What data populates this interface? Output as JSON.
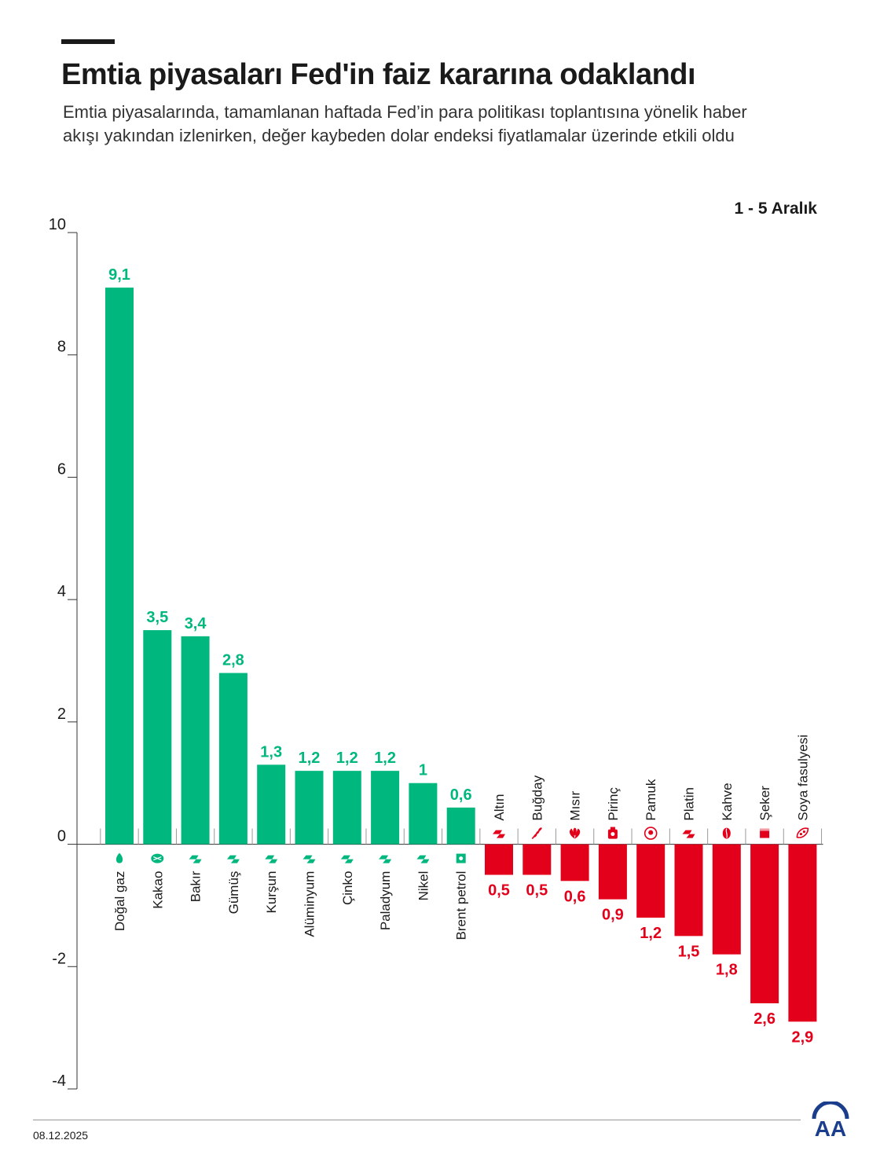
{
  "header": {
    "title": "Emtia piyasaları Fed'in faiz kararına odaklandı",
    "subtitle": "Emtia piyasalarında, tamamlanan haftada Fed’in para politikası toplantısına yönelik haber akışı yakından izlenirken, değer kaybeden dolar endeksi fiyatlamalar üzerinde etkili oldu",
    "date_range": "1 - 5 Aralık"
  },
  "footer": {
    "date": "08.12.2025",
    "logo_text": "AA"
  },
  "colors": {
    "positive": "#00b77e",
    "negative": "#e3001b",
    "axis": "#333333",
    "text": "#1a1a1a"
  },
  "chart_data": {
    "type": "bar",
    "title": "Emtia piyasaları Fed'in faiz kararına odaklandı",
    "xlabel": "",
    "ylabel": "",
    "ylim": [
      -4,
      10
    ],
    "yticks": [
      10,
      8,
      6,
      4,
      2,
      0,
      -2,
      -4
    ],
    "ytick_labels": [
      "10",
      "8",
      "6",
      "4",
      "2",
      "0",
      "-2",
      "-4"
    ],
    "grid": false,
    "categories": [
      "Doğal gaz",
      "Kakao",
      "Bakır",
      "Gümüş",
      "Kurşun",
      "Alüminyum",
      "Çinko",
      "Paladyum",
      "Nikel",
      "Brent petrol",
      "Altın",
      "Buğday",
      "Mısır",
      "Pirinç",
      "Pamuk",
      "Platin",
      "Kahve",
      "Şeker",
      "Soya fasulyesi"
    ],
    "values": [
      9.1,
      3.5,
      3.4,
      2.8,
      1.3,
      1.2,
      1.2,
      1.2,
      1.0,
      0.6,
      -0.5,
      -0.5,
      -0.6,
      -0.9,
      -1.2,
      -1.5,
      -1.8,
      -2.6,
      -2.9
    ],
    "value_labels": [
      "9,1",
      "3,5",
      "3,4",
      "2,8",
      "1,3",
      "1,2",
      "1,2",
      "1,2",
      "1",
      "0,6",
      "0,5",
      "0,5",
      "0,6",
      "0,9",
      "1,2",
      "1,5",
      "1,8",
      "2,6",
      "2,9"
    ],
    "icons": [
      "flame-icon",
      "cocoa-icon",
      "metal-bar-icon",
      "metal-bar-icon",
      "metal-bar-icon",
      "metal-bar-icon",
      "metal-bar-icon",
      "metal-bar-icon",
      "metal-bar-icon",
      "oil-barrel-icon",
      "gold-bar-icon",
      "wheat-icon",
      "corn-icon",
      "rice-icon",
      "cotton-icon",
      "metal-bar-icon",
      "coffee-bean-icon",
      "sugar-icon",
      "soybean-icon"
    ]
  }
}
